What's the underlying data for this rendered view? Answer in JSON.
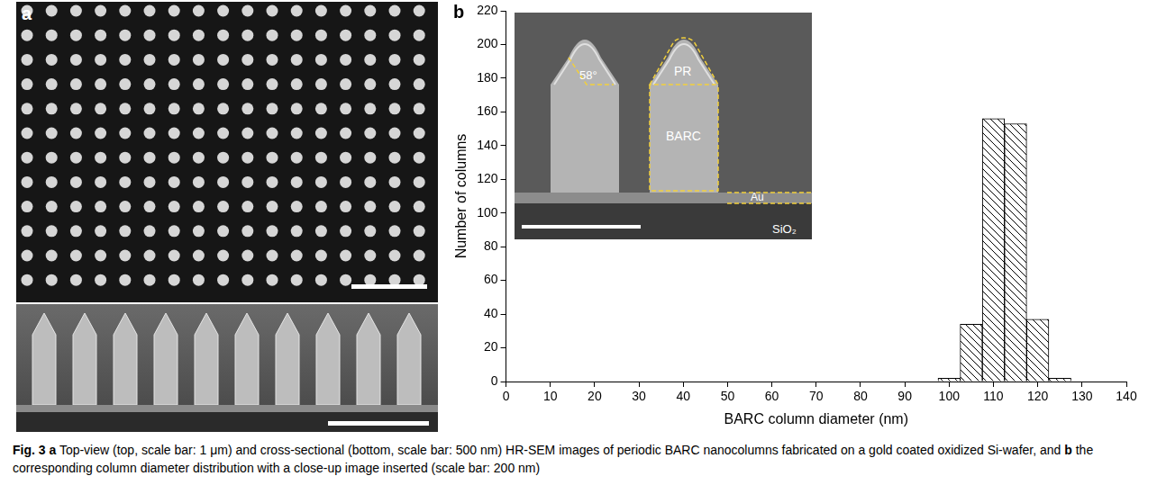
{
  "chart_data": {
    "type": "histogram",
    "x_label": "BARC column diameter (nm)",
    "y_label": "Number of columns",
    "bins": [
      97.5,
      102.5,
      107.5,
      112.5,
      117.5,
      122.5,
      127.5
    ],
    "values": [
      2,
      34,
      156,
      153,
      37,
      2
    ],
    "color": "#000000",
    "xlim": [
      0,
      140
    ],
    "xticks": [
      0,
      10,
      20,
      30,
      40,
      50,
      60,
      70,
      80,
      90,
      100,
      110,
      120,
      130,
      140
    ],
    "ylim": [
      0,
      220
    ],
    "yticks": [
      0,
      20,
      40,
      60,
      80,
      100,
      120,
      140,
      160,
      180,
      200,
      220
    ],
    "grid": false
  },
  "panels": {
    "a": {
      "letter": "a"
    },
    "b": {
      "letter": "b",
      "inset_labels": {
        "angle": "58°",
        "top": "PR",
        "middle": "BARC",
        "metal": "Au",
        "substrate": "SiO₂"
      }
    }
  },
  "caption": [
    {
      "text": "Fig. 3",
      "bold": true
    },
    {
      "text": " "
    },
    {
      "text": "a",
      "bold": true
    },
    {
      "text": " Top-view (top, scale bar: 1 μm) and cross-sectional (bottom, scale bar: 500 nm) HR-SEM images of periodic BARC nanocolumns fabricated on a gold coated oxidized Si-wafer, and "
    },
    {
      "text": "b",
      "bold": true
    },
    {
      "text": " the corresponding column diameter distribution with a close-up image inserted (scale bar: 200 nm)"
    }
  ]
}
